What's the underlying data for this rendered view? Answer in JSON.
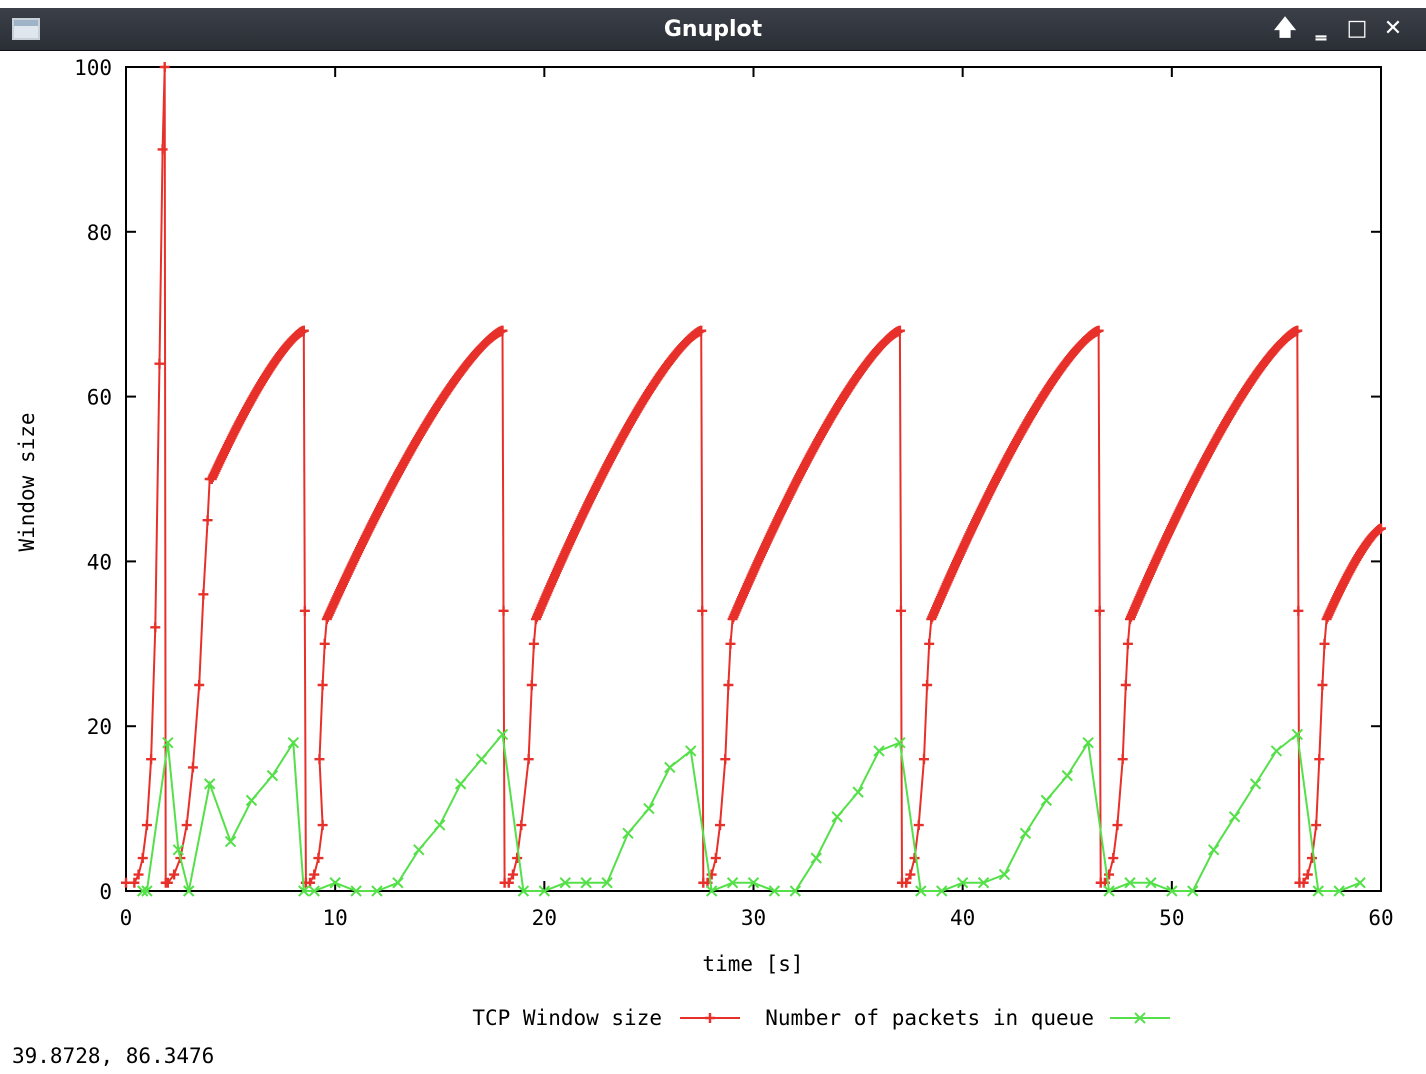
{
  "window": {
    "title": "Gnuplot",
    "controls": {
      "raise": "🡅",
      "minimize": "‗",
      "maximize": "□",
      "close": "✕"
    }
  },
  "status_text": "39.8728,  86.3476",
  "colors": {
    "tcp": "#e8302a",
    "queue": "#55e04a",
    "axis": "#000000",
    "background": "#ffffff"
  },
  "chart_data": {
    "type": "line",
    "xlabel": "time [s]",
    "ylabel": "Window size",
    "xlim": [
      0,
      60
    ],
    "ylim": [
      0,
      100
    ],
    "x_ticks": [
      0,
      10,
      20,
      30,
      40,
      50,
      60
    ],
    "y_ticks": [
      0,
      20,
      40,
      60,
      80,
      100
    ],
    "grid": false,
    "legend_position": "bottom-center",
    "series": [
      {
        "name": "TCP Window size",
        "marker": "plus",
        "cycles": [
          {
            "start": 0.0,
            "end": 2.0,
            "points": [
              [
                0.0,
                1
              ],
              [
                0.4,
                1
              ],
              [
                0.6,
                2
              ],
              [
                0.8,
                4
              ],
              [
                1.0,
                8
              ],
              [
                1.2,
                16
              ],
              [
                1.4,
                32
              ],
              [
                1.6,
                64
              ],
              [
                1.75,
                90
              ],
              [
                1.85,
                100
              ],
              [
                1.9,
                1
              ]
            ]
          },
          {
            "start": 2.0,
            "end": 4.1,
            "points": [
              [
                2.0,
                1
              ],
              [
                2.3,
                2
              ],
              [
                2.6,
                4
              ],
              [
                2.9,
                8
              ],
              [
                3.2,
                15
              ],
              [
                3.5,
                25
              ],
              [
                3.7,
                36
              ],
              [
                3.9,
                45
              ],
              [
                4.0,
                50
              ]
            ]
          },
          {
            "from": [
              4.1,
              50
            ],
            "to": [
              8.5,
              68
            ]
          },
          {
            "from": [
              9.6,
              33
            ],
            "to": [
              18.0,
              68
            ]
          },
          {
            "from": [
              19.6,
              33
            ],
            "to": [
              27.5,
              68
            ]
          },
          {
            "from": [
              29.0,
              33
            ],
            "to": [
              37.0,
              68
            ]
          },
          {
            "from": [
              38.5,
              33
            ],
            "to": [
              46.5,
              68
            ]
          },
          {
            "from": [
              48.0,
              33
            ],
            "to": [
              56.0,
              68
            ]
          },
          {
            "from": [
              57.4,
              33
            ],
            "to": [
              60.0,
              44
            ]
          }
        ]
      },
      {
        "name": "Number of packets in queue",
        "marker": "cross",
        "x": [
          0.8,
          1.0,
          2.0,
          2.5,
          3.0,
          4.0,
          5.0,
          6.0,
          7.0,
          8.0,
          8.5,
          9.0,
          10.0,
          11.0,
          12.0,
          13.0,
          14.0,
          15.0,
          16.0,
          17.0,
          18.0,
          19.0,
          20.0,
          21.0,
          22.0,
          23.0,
          24.0,
          25.0,
          26.0,
          27.0,
          28.0,
          29.0,
          30.0,
          31.0,
          32.0,
          33.0,
          34.0,
          35.0,
          36.0,
          37.0,
          38.0,
          39.0,
          40.0,
          41.0,
          42.0,
          43.0,
          44.0,
          45.0,
          46.0,
          47.0,
          48.0,
          49.0,
          50.0,
          51.0,
          52.0,
          53.0,
          54.0,
          55.0,
          56.0,
          57.0,
          58.0,
          59.0
        ],
        "y": [
          0,
          0,
          18,
          5,
          0,
          13,
          6,
          11,
          14,
          18,
          0,
          0,
          1,
          0,
          0,
          1,
          5,
          8,
          13,
          16,
          19,
          0,
          0,
          1,
          1,
          1,
          7,
          10,
          15,
          17,
          0,
          1,
          1,
          0,
          0,
          4,
          9,
          12,
          17,
          18,
          0,
          0,
          1,
          1,
          2,
          7,
          11,
          14,
          18,
          0,
          1,
          1,
          0,
          0,
          5,
          9,
          13,
          17,
          19,
          0,
          0,
          1
        ]
      }
    ]
  }
}
